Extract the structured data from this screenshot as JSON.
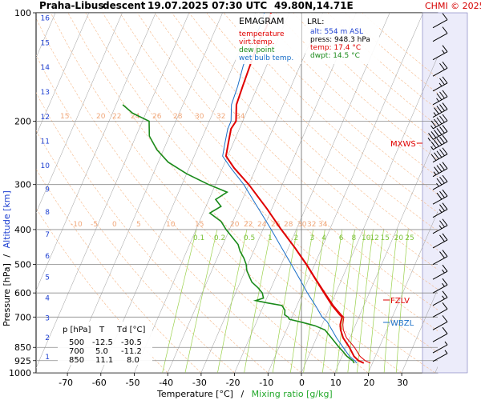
{
  "header": {
    "station": "Praha-Libus",
    "sounding": "descent",
    "datetime": "19.07.2025 07:30 UTC",
    "location": "49.80N,14.71E",
    "copyright": "CHMI © 2025"
  },
  "legend": {
    "title": "EMAGRAM",
    "items": [
      {
        "label": "temperature",
        "color": "#e00000"
      },
      {
        "label": "virt.temp.",
        "color": "#e00000"
      },
      {
        "label": "dew point",
        "color": "#1a8a1a"
      },
      {
        "label": "wet bulb temp.",
        "color": "#1a6fc8"
      }
    ]
  },
  "lrl": {
    "title": "LRL:",
    "alt": "alt: 554 m ASL",
    "press": "press: 948.3 hPa",
    "temp": "temp: 17.4 °C",
    "dwpt": "dwpt: 14.5 °C",
    "colors": {
      "alt": "#1d3fd1",
      "press": "#000000",
      "temp": "#e00000",
      "dwpt": "#1a8a1a"
    }
  },
  "table": {
    "headers": [
      "p [hPa]",
      "T",
      "Td [°C]"
    ],
    "rows": [
      [
        "500",
        "-12.5",
        "-30.5"
      ],
      [
        "700",
        "5.0",
        "-11.2"
      ],
      [
        "850",
        "11.1",
        "8.0"
      ]
    ]
  },
  "axes": {
    "ylabel_pressure": "Pressure [hPa]",
    "ylabel_sep": "/",
    "ylabel_altitude": "Altitude [km]",
    "xlabel_temp": "Temperature [°C]",
    "xlabel_sep": "/",
    "xlabel_mixing": "Mixing ratio [g/kg]"
  },
  "levels": [
    {
      "label": "MXWS",
      "pressure": 225,
      "color": "#e00000"
    },
    {
      "label": "FZLV",
      "pressure": 620,
      "color": "#e00000"
    },
    {
      "label": "WBZL",
      "pressure": 730,
      "color": "#1a6fc8"
    }
  ],
  "chart_data": {
    "type": "line",
    "title": "EMAGRAM",
    "xlabel": "Temperature [°C]",
    "ylabel": "Pressure [hPa]",
    "x_ticks": [
      -70,
      -60,
      -50,
      -40,
      -30,
      -20,
      -10,
      0,
      10,
      20,
      30
    ],
    "xlim": [
      -80,
      40
    ],
    "y_ticks": [
      100,
      200,
      300,
      400,
      500,
      600,
      700,
      850,
      925,
      1000
    ],
    "ylim": [
      1000,
      100
    ],
    "y_scale": "log",
    "altitude_ticks_km": [
      1,
      2,
      3,
      4,
      5,
      6,
      7,
      8,
      9,
      10,
      11,
      12,
      13,
      14,
      15,
      16
    ],
    "mixing_ratio_labels": [
      "0.1",
      "0.2",
      "0.5",
      "1",
      "2",
      "3",
      "4",
      "6",
      "8",
      "10",
      "12",
      "15",
      "20",
      "25"
    ],
    "potential_temp_labels_upper": [
      "15",
      "20",
      "22",
      "24",
      "26",
      "28",
      "30",
      "32",
      "34"
    ],
    "potential_temp_labels_lower": [
      "-10",
      "-5",
      "0",
      "5",
      "10",
      "15",
      "20",
      "22",
      "24",
      "26",
      "28",
      "30",
      "32",
      "34"
    ],
    "series": [
      {
        "name": "temperature",
        "color": "#e00000",
        "points": [
          [
            940,
            17.4
          ],
          [
            925,
            15.5
          ],
          [
            900,
            13.6
          ],
          [
            850,
            11.1
          ],
          [
            800,
            8.0
          ],
          [
            760,
            6.2
          ],
          [
            735,
            5.4
          ],
          [
            720,
            5.2
          ],
          [
            700,
            5.0
          ],
          [
            690,
            4.0
          ],
          [
            650,
            0.5
          ],
          [
            600,
            -3.5
          ],
          [
            550,
            -7.8
          ],
          [
            500,
            -12.5
          ],
          [
            450,
            -18.0
          ],
          [
            400,
            -24.5
          ],
          [
            350,
            -31.5
          ],
          [
            300,
            -40.0
          ],
          [
            270,
            -46.5
          ],
          [
            250,
            -50.5
          ],
          [
            230,
            -51.5
          ],
          [
            210,
            -52.5
          ],
          [
            200,
            -52.0
          ],
          [
            180,
            -54.0
          ],
          [
            160,
            -54.5
          ],
          [
            140,
            -55.0
          ],
          [
            120,
            -55.5
          ],
          [
            110,
            -55.0
          ],
          [
            100,
            -55.5
          ]
        ]
      },
      {
        "name": "virt.temp.",
        "color": "#e00000",
        "points": [
          [
            940,
            19.4
          ],
          [
            925,
            17.5
          ],
          [
            900,
            15.4
          ],
          [
            850,
            12.6
          ],
          [
            800,
            9.0
          ],
          [
            760,
            7.0
          ],
          [
            735,
            6.2
          ],
          [
            720,
            5.9
          ],
          [
            700,
            5.5
          ],
          [
            690,
            4.5
          ],
          [
            650,
            0.9
          ],
          [
            600,
            -3.2
          ],
          [
            550,
            -7.6
          ],
          [
            500,
            -12.3
          ],
          [
            450,
            -17.9
          ],
          [
            400,
            -24.4
          ],
          [
            350,
            -31.5
          ],
          [
            300,
            -40.0
          ],
          [
            270,
            -46.5
          ],
          [
            250,
            -50.5
          ],
          [
            230,
            -51.5
          ],
          [
            210,
            -52.5
          ],
          [
            200,
            -52.0
          ],
          [
            180,
            -54.0
          ],
          [
            160,
            -54.5
          ],
          [
            140,
            -55.0
          ],
          [
            120,
            -55.5
          ],
          [
            110,
            -55.0
          ],
          [
            100,
            -55.5
          ]
        ]
      },
      {
        "name": "dew point",
        "color": "#1a8a1a",
        "points": [
          [
            940,
            14.5
          ],
          [
            925,
            13.8
          ],
          [
            900,
            11.5
          ],
          [
            870,
            9.5
          ],
          [
            850,
            8.0
          ],
          [
            800,
            4.5
          ],
          [
            760,
            1.5
          ],
          [
            740,
            -2.0
          ],
          [
            725,
            -6.0
          ],
          [
            710,
            -10.5
          ],
          [
            700,
            -11.2
          ],
          [
            690,
            -12.5
          ],
          [
            670,
            -13.0
          ],
          [
            650,
            -14.5
          ],
          [
            640,
            -19.0
          ],
          [
            630,
            -23.0
          ],
          [
            620,
            -21.0
          ],
          [
            600,
            -22.0
          ],
          [
            580,
            -24.0
          ],
          [
            560,
            -26.5
          ],
          [
            540,
            -28.0
          ],
          [
            520,
            -29.5
          ],
          [
            500,
            -30.5
          ],
          [
            480,
            -32.0
          ],
          [
            460,
            -34.0
          ],
          [
            440,
            -35.5
          ],
          [
            400,
            -41.0
          ],
          [
            380,
            -43.5
          ],
          [
            360,
            -48.0
          ],
          [
            345,
            -45.5
          ],
          [
            330,
            -48.0
          ],
          [
            315,
            -45.5
          ],
          [
            300,
            -52.0
          ],
          [
            280,
            -60.0
          ],
          [
            260,
            -67.0
          ],
          [
            240,
            -72.0
          ],
          [
            220,
            -76.0
          ],
          [
            200,
            -78.0
          ],
          [
            190,
            -84.0
          ],
          [
            180,
            -88.0
          ]
        ]
      },
      {
        "name": "wet bulb temp.",
        "color": "#1a6fc8",
        "points": [
          [
            940,
            15.3
          ],
          [
            925,
            14.4
          ],
          [
            900,
            12.3
          ],
          [
            850,
            9.2
          ],
          [
            800,
            6.0
          ],
          [
            760,
            3.6
          ],
          [
            720,
            1.0
          ],
          [
            700,
            -1.0
          ],
          [
            650,
            -4.5
          ],
          [
            600,
            -8.5
          ],
          [
            550,
            -12.5
          ],
          [
            500,
            -17.0
          ],
          [
            450,
            -22.0
          ],
          [
            400,
            -27.5
          ],
          [
            350,
            -34.0
          ],
          [
            300,
            -41.5
          ],
          [
            270,
            -47.5
          ],
          [
            250,
            -51.5
          ],
          [
            230,
            -52.5
          ],
          [
            210,
            -53.5
          ],
          [
            200,
            -53.5
          ],
          [
            180,
            -55.5
          ],
          [
            160,
            -56.0
          ],
          [
            140,
            -57.0
          ],
          [
            120,
            -57.5
          ],
          [
            110,
            -57.0
          ],
          [
            100,
            -57.5
          ]
        ]
      }
    ],
    "wind_barbs": [
      {
        "pressure": 110,
        "speed_kt": 10
      },
      {
        "pressure": 120,
        "speed_kt": 10
      },
      {
        "pressure": 135,
        "speed_kt": 15
      },
      {
        "pressure": 150,
        "speed_kt": 20
      },
      {
        "pressure": 165,
        "speed_kt": 25
      },
      {
        "pressure": 180,
        "speed_kt": 35
      },
      {
        "pressure": 195,
        "speed_kt": 45
      },
      {
        "pressure": 210,
        "speed_kt": 55
      },
      {
        "pressure": 225,
        "speed_kt": 65
      },
      {
        "pressure": 240,
        "speed_kt": 55
      },
      {
        "pressure": 260,
        "speed_kt": 50
      },
      {
        "pressure": 285,
        "speed_kt": 45
      },
      {
        "pressure": 310,
        "speed_kt": 35
      },
      {
        "pressure": 340,
        "speed_kt": 30
      },
      {
        "pressure": 370,
        "speed_kt": 25
      },
      {
        "pressure": 410,
        "speed_kt": 25
      },
      {
        "pressure": 450,
        "speed_kt": 20
      },
      {
        "pressure": 500,
        "speed_kt": 20
      },
      {
        "pressure": 550,
        "speed_kt": 15
      },
      {
        "pressure": 600,
        "speed_kt": 15
      },
      {
        "pressure": 650,
        "speed_kt": 15
      },
      {
        "pressure": 700,
        "speed_kt": 10
      },
      {
        "pressure": 760,
        "speed_kt": 10
      },
      {
        "pressure": 820,
        "speed_kt": 10
      },
      {
        "pressure": 880,
        "speed_kt": 5
      },
      {
        "pressure": 930,
        "speed_kt": 5
      }
    ]
  }
}
